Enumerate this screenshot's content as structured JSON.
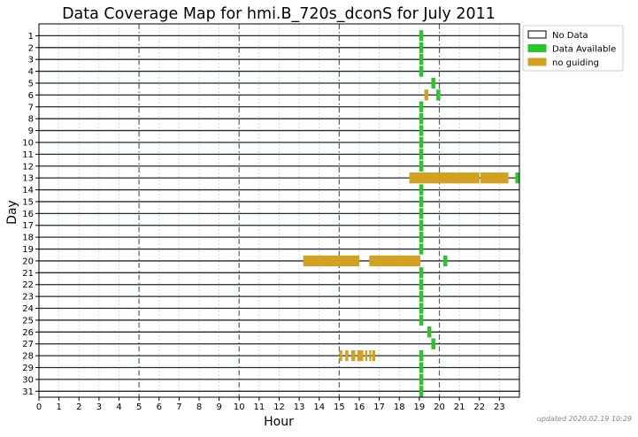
{
  "chart_data": {
    "type": "bar",
    "title": "Data Coverage Map for hmi.B_720s_dconS for July 2011",
    "xlabel": "Hour",
    "ylabel": "Day",
    "xlim": [
      0,
      24
    ],
    "x_ticks": [
      0,
      1,
      2,
      3,
      4,
      5,
      6,
      7,
      8,
      9,
      10,
      11,
      12,
      13,
      14,
      15,
      16,
      17,
      18,
      19,
      20,
      21,
      22,
      23
    ],
    "days": [
      1,
      2,
      3,
      4,
      5,
      6,
      7,
      8,
      9,
      10,
      11,
      12,
      13,
      14,
      15,
      16,
      17,
      18,
      19,
      20,
      21,
      22,
      23,
      24,
      25,
      26,
      27,
      28,
      29,
      30,
      31
    ],
    "major_grid_hours": [
      5,
      10,
      15,
      20
    ],
    "legend_placement": "outside-right-top",
    "legend": [
      {
        "label": "No Data",
        "color": "#ffffff"
      },
      {
        "label": "Data Available",
        "color": "#2dc52d"
      },
      {
        "label": "no guiding",
        "color": "#d4a020"
      }
    ],
    "series": [
      {
        "name": "Data Available",
        "color": "#2dc52d",
        "segments": [
          {
            "day": 1,
            "start": 19.0,
            "end": 19.2
          },
          {
            "day": 2,
            "start": 19.0,
            "end": 19.2
          },
          {
            "day": 3,
            "start": 19.0,
            "end": 19.2
          },
          {
            "day": 4,
            "start": 19.0,
            "end": 19.2
          },
          {
            "day": 5,
            "start": 19.6,
            "end": 19.8
          },
          {
            "day": 6,
            "start": 19.85,
            "end": 20.05
          },
          {
            "day": 7,
            "start": 19.0,
            "end": 19.2
          },
          {
            "day": 8,
            "start": 19.0,
            "end": 19.2
          },
          {
            "day": 9,
            "start": 19.0,
            "end": 19.2
          },
          {
            "day": 10,
            "start": 19.0,
            "end": 19.2
          },
          {
            "day": 11,
            "start": 19.0,
            "end": 19.2
          },
          {
            "day": 12,
            "start": 19.0,
            "end": 19.2
          },
          {
            "day": 13,
            "start": 23.8,
            "end": 24.0
          },
          {
            "day": 14,
            "start": 19.0,
            "end": 19.2
          },
          {
            "day": 15,
            "start": 19.0,
            "end": 19.2
          },
          {
            "day": 16,
            "start": 19.0,
            "end": 19.2
          },
          {
            "day": 17,
            "start": 19.0,
            "end": 19.2
          },
          {
            "day": 18,
            "start": 19.0,
            "end": 19.2
          },
          {
            "day": 19,
            "start": 19.0,
            "end": 19.2
          },
          {
            "day": 20,
            "start": 20.2,
            "end": 20.4
          },
          {
            "day": 21,
            "start": 19.0,
            "end": 19.2
          },
          {
            "day": 22,
            "start": 19.0,
            "end": 19.2
          },
          {
            "day": 23,
            "start": 19.0,
            "end": 19.2
          },
          {
            "day": 24,
            "start": 19.0,
            "end": 19.2
          },
          {
            "day": 25,
            "start": 19.0,
            "end": 19.2
          },
          {
            "day": 26,
            "start": 19.4,
            "end": 19.6
          },
          {
            "day": 27,
            "start": 19.6,
            "end": 19.8
          },
          {
            "day": 28,
            "start": 19.0,
            "end": 19.2
          },
          {
            "day": 29,
            "start": 19.0,
            "end": 19.2
          },
          {
            "day": 30,
            "start": 19.0,
            "end": 19.2
          },
          {
            "day": 31,
            "start": 19.0,
            "end": 19.2
          }
        ]
      },
      {
        "name": "no guiding",
        "color": "#d4a020",
        "segments": [
          {
            "day": 6,
            "start": 19.25,
            "end": 19.45
          },
          {
            "day": 13,
            "start": 18.5,
            "end": 22.0
          },
          {
            "day": 13,
            "start": 22.05,
            "end": 23.45
          },
          {
            "day": 20,
            "start": 13.2,
            "end": 16.0
          },
          {
            "day": 20,
            "start": 16.5,
            "end": 19.05
          },
          {
            "day": 28,
            "start": 15.0,
            "end": 15.15
          },
          {
            "day": 28,
            "start": 15.3,
            "end": 15.45
          },
          {
            "day": 28,
            "start": 15.6,
            "end": 15.8
          },
          {
            "day": 28,
            "start": 15.9,
            "end": 16.2
          },
          {
            "day": 28,
            "start": 16.3,
            "end": 16.4
          },
          {
            "day": 28,
            "start": 16.5,
            "end": 16.6
          },
          {
            "day": 28,
            "start": 16.65,
            "end": 16.8
          }
        ]
      }
    ]
  },
  "footer": {
    "updated": "updated 2020.02.19 10:29"
  }
}
